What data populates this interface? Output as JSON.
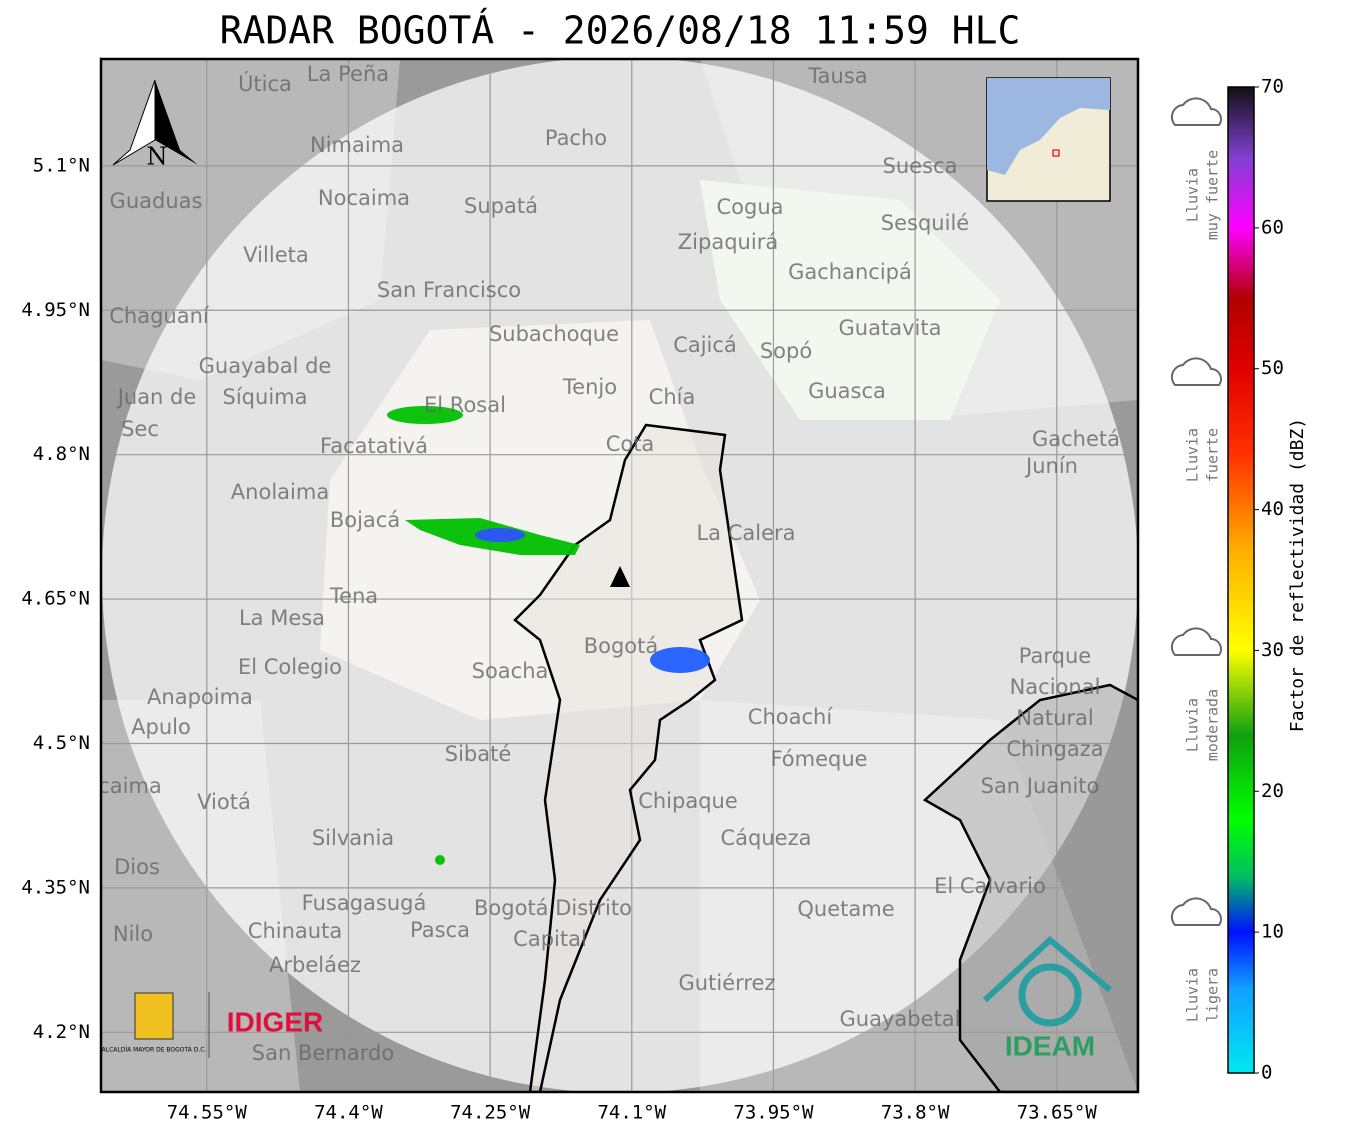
{
  "title": "RADAR BOGOTÁ - 2026/08/18 11:59 HLC",
  "map": {
    "xlim": [
      -74.662,
      -73.564
    ],
    "ylim": [
      4.138,
      5.211
    ],
    "xticks": [
      {
        "value": -74.55,
        "label": "74.55°W"
      },
      {
        "value": -74.4,
        "label": "74.4°W"
      },
      {
        "value": -74.25,
        "label": "74.25°W"
      },
      {
        "value": -74.1,
        "label": "74.1°W"
      },
      {
        "value": -73.95,
        "label": "73.95°W"
      },
      {
        "value": -73.8,
        "label": "73.8°W"
      },
      {
        "value": -73.65,
        "label": "73.65°W"
      }
    ],
    "yticks": [
      {
        "value": 5.1,
        "label": "5.1°N"
      },
      {
        "value": 4.95,
        "label": "4.95°N"
      },
      {
        "value": 4.8,
        "label": "4.8°N"
      },
      {
        "value": 4.65,
        "label": "4.65°N"
      },
      {
        "value": 4.5,
        "label": "4.5°N"
      },
      {
        "value": 4.35,
        "label": "4.35°N"
      },
      {
        "value": 4.2,
        "label": "4.2°N"
      }
    ],
    "grid": true,
    "north": "N",
    "places": [
      "La Peña",
      "Útica",
      "Tausa",
      "Pacho",
      "Nimaima",
      "Guaduas",
      "Nocaima",
      "Supatá",
      "Suesca",
      "Cogua",
      "Sesquilé",
      "Zipaquirá",
      "Villeta",
      "Gachancipá",
      "San Francisco",
      "Chaguaní",
      "Guatavita",
      "Subachoque",
      "Cajicá",
      "Sopó",
      "Guayabal de",
      "Síquima",
      "Tenjo",
      "Chía",
      "Guasca",
      "Juan de",
      "El Rosal",
      "Sec",
      "Gachetá",
      "Cota",
      "Facatativá",
      "Junín",
      "Anolaima",
      "Bojacá",
      "La Calera",
      "Tena",
      "La Mesa",
      "El Colegio",
      "Soacha",
      "Bogotá",
      "Parque",
      "Nacional",
      "Natural",
      "Chingaza",
      "Anapoima",
      "Apulo",
      "Choachí",
      "Sibaté",
      "Fómeque",
      "San Juanito",
      "Viotá",
      "Chipaque",
      "Cáqueza",
      "Silvania",
      "Dios",
      "El Calvario",
      "Fusagasugá",
      "Bogotá Distrito",
      "Capital",
      "Quetame",
      "Nilo",
      "Chinauta",
      "Pasca",
      "Arbeláez",
      "Gutiérrez",
      "Guayabetal",
      "San Bernardo",
      "caima"
    ]
  },
  "logos": {
    "alcaldia": "ALCALDÍA MAYOR DE BOGOTÁ D.C.",
    "idiger": "IDIGER",
    "ideam": "IDEAM"
  },
  "colorbar": {
    "label": "Factor de reflectividad (dBZ)",
    "lim": [
      0,
      70
    ],
    "ticks": [
      0,
      10,
      20,
      30,
      40,
      50,
      60,
      70
    ],
    "scale": [
      {
        "value": 0,
        "color": "#00e8f0"
      },
      {
        "value": 6,
        "color": "#10a0ff"
      },
      {
        "value": 10,
        "color": "#0010ff"
      },
      {
        "value": 14,
        "color": "#00c060"
      },
      {
        "value": 18,
        "color": "#00ff00"
      },
      {
        "value": 24,
        "color": "#10a010"
      },
      {
        "value": 30,
        "color": "#ffff00"
      },
      {
        "value": 37,
        "color": "#ffb000"
      },
      {
        "value": 44,
        "color": "#ff3000"
      },
      {
        "value": 50,
        "color": "#e00000"
      },
      {
        "value": 55,
        "color": "#b00000"
      },
      {
        "value": 60,
        "color": "#ff00ff"
      },
      {
        "value": 65,
        "color": "#8040d0"
      },
      {
        "value": 70,
        "color": "#101010"
      }
    ],
    "categories": [
      [
        "Lluvia",
        "muy fuerte"
      ],
      [
        "Lluvia",
        "fuerte"
      ],
      [
        "Lluvia",
        "moderada"
      ],
      [
        "Lluvia",
        "ligera"
      ]
    ]
  }
}
